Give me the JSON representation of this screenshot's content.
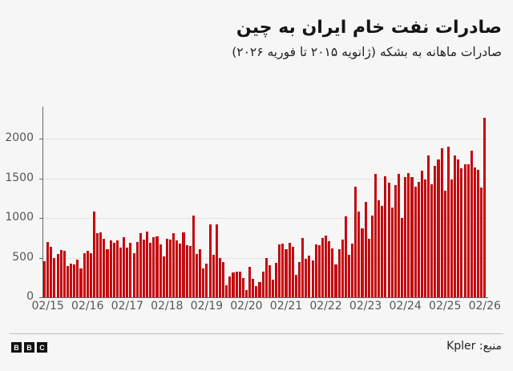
{
  "header": {
    "title": "صادرات نفت خام ایران به چین",
    "subtitle": "صادرات ماهانه به بشکه (ژانویه ۲۰۱۵ تا فوریه ۲۰۲۶)"
  },
  "footer": {
    "logo_letters": [
      "B",
      "B",
      "C"
    ],
    "source": "منبع: Kpler"
  },
  "colors": {
    "bar": "#d10a11",
    "background": "#f6f6f6"
  },
  "chart_data": {
    "type": "bar",
    "title": "صادرات نفت خام ایران به چین",
    "subtitle": "صادرات ماهانه به بشکه (ژانویه ۲۰۱۵ تا فوریه ۲۰۲۶)",
    "xlabel": "",
    "ylabel": "",
    "ylim": [
      0,
      2400
    ],
    "yticks": [
      0,
      500,
      1000,
      1500,
      2000
    ],
    "xtick_labels": [
      "02/15",
      "02/16",
      "02/17",
      "02/18",
      "02/19",
      "02/20",
      "02/21",
      "02/22",
      "02/23",
      "02/24",
      "02/25",
      "02/26"
    ],
    "grid": true,
    "legend": "none",
    "x_start": "01/2015",
    "x_end": "02/2026",
    "frequency": "monthly",
    "values": [
      460,
      700,
      640,
      500,
      545,
      600,
      590,
      390,
      430,
      420,
      475,
      360,
      560,
      585,
      560,
      1085,
      805,
      820,
      740,
      610,
      715,
      690,
      720,
      630,
      755,
      625,
      690,
      560,
      700,
      805,
      730,
      830,
      690,
      760,
      765,
      665,
      515,
      735,
      730,
      805,
      720,
      675,
      815,
      655,
      650,
      1035,
      550,
      610,
      360,
      430,
      920,
      540,
      920,
      495,
      450,
      155,
      260,
      310,
      325,
      325,
      245,
      95,
      380,
      230,
      140,
      195,
      325,
      495,
      400,
      225,
      435,
      665,
      680,
      610,
      690,
      635,
      280,
      450,
      745,
      485,
      530,
      465,
      665,
      660,
      745,
      775,
      710,
      615,
      420,
      610,
      725,
      1020,
      540,
      675,
      1400,
      1080,
      875,
      1205,
      740,
      1030,
      1555,
      1220,
      1150,
      1525,
      1450,
      1135,
      1420,
      1560,
      1005,
      1515,
      1570,
      1520,
      1395,
      1455,
      1600,
      1490,
      1795,
      1430,
      1665,
      1740,
      1885,
      1350,
      1905,
      1485,
      1795,
      1740,
      1625,
      1680,
      1680,
      1850,
      1635,
      1610,
      1385,
      2270
    ]
  }
}
